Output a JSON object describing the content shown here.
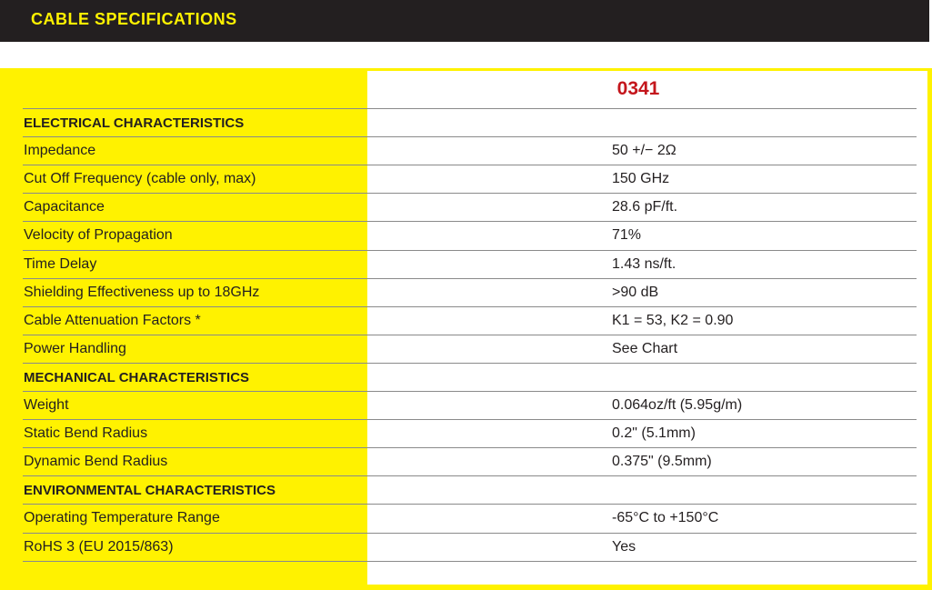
{
  "header": {
    "title": "CABLE SPECIFICATIONS"
  },
  "table": {
    "model": "0341",
    "rows": [
      {
        "label": "ELECTRICAL CHARACTERISTICS",
        "value": "",
        "section": true
      },
      {
        "label": "Impedance",
        "value": "50 +/− 2Ω"
      },
      {
        "label": "Cut Off Frequency (cable only, max)",
        "value": "150 GHz"
      },
      {
        "label": "Capacitance",
        "value": "28.6 pF/ft."
      },
      {
        "label": "Velocity of Propagation",
        "value": "71%"
      },
      {
        "label": "Time Delay",
        "value": "1.43 ns/ft."
      },
      {
        "label": "Shielding Effectiveness up to 18GHz",
        "value": ">90 dB"
      },
      {
        "label": "Cable Attenuation Factors *",
        "value": "K1 = 53, K2 = 0.90"
      },
      {
        "label": "Power Handling",
        "value": "See Chart"
      },
      {
        "label": "MECHANICAL CHARACTERISTICS",
        "value": "",
        "section": true
      },
      {
        "label": "Weight",
        "value": "0.064oz/ft (5.95g/m)"
      },
      {
        "label": "Static Bend Radius",
        "value": "0.2\" (5.1mm)"
      },
      {
        "label": "Dynamic Bend Radius",
        "value": "0.375\" (9.5mm)"
      },
      {
        "label": "ENVIRONMENTAL CHARACTERISTICS",
        "value": "",
        "section": true
      },
      {
        "label": "Operating Temperature Range",
        "value": "-65°C to +150°C"
      },
      {
        "label": "RoHS 3 (EU 2015/863)",
        "value": "Yes"
      }
    ]
  },
  "colors": {
    "accent": "#fff200",
    "header_bg": "#231f20",
    "model": "#c4161c"
  }
}
